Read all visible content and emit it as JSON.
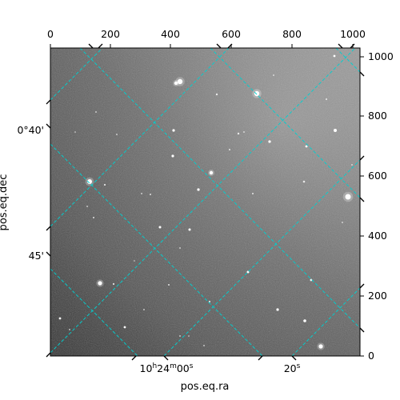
{
  "figure": {
    "xlabel": "pos.eq.ra",
    "ylabel": "pos.eq.dec",
    "pixel_axes": {
      "top_ticks": [
        "0",
        "200",
        "400",
        "600",
        "800",
        "1000"
      ],
      "right_ticks": [
        "0",
        "200",
        "400",
        "600",
        "800",
        "1000"
      ]
    },
    "world_axes": {
      "ra_ticks": [
        {
          "prefix": "10",
          "h": "h",
          "mid": "24",
          "m": "m",
          "sec": "00",
          "s": "s"
        },
        {
          "prefix": "",
          "h": "",
          "mid": "",
          "m": "",
          "sec": "20",
          "s": "s"
        }
      ],
      "dec_ticks": [
        "0°40'",
        "45'"
      ]
    },
    "grid_color": "#00d0d0",
    "image_tone": "grayscale sky field"
  }
}
